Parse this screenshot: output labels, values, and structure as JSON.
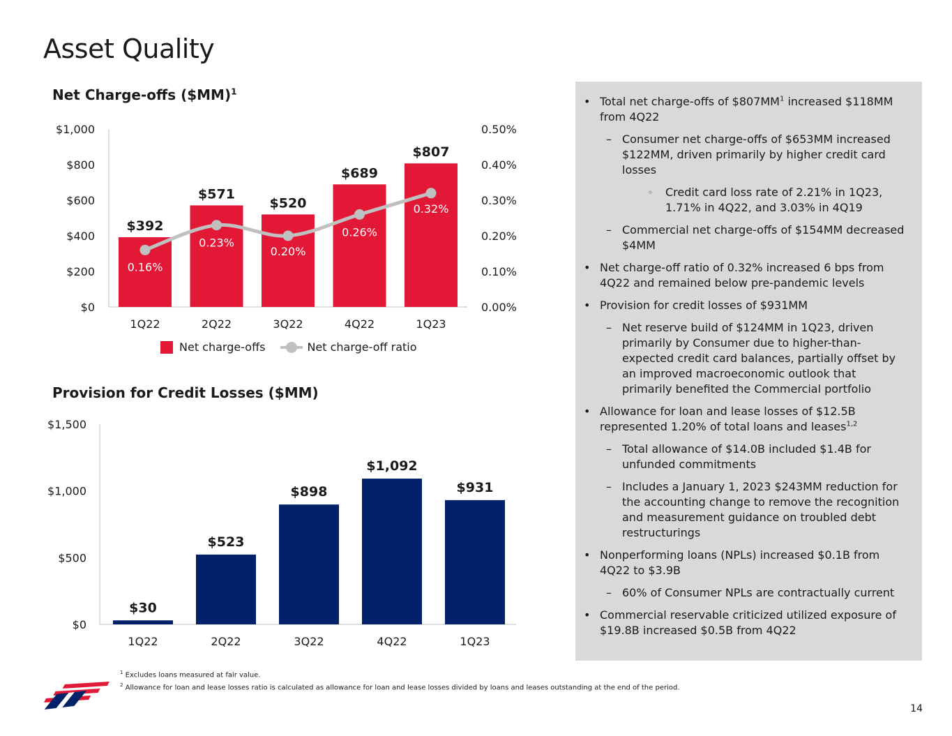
{
  "page": {
    "title": "Asset Quality",
    "page_number": "14"
  },
  "colors": {
    "red": "#e31837",
    "navy": "#012169",
    "gray_line": "#c0c0c0",
    "panel_bg": "#d9d9d9"
  },
  "chart_data": [
    {
      "type": "bar",
      "title": "Net Charge-offs ($MM)",
      "title_sup": "1",
      "categories": [
        "1Q22",
        "2Q22",
        "3Q22",
        "4Q22",
        "1Q23"
      ],
      "series": [
        {
          "name": "Net charge-offs",
          "type": "bar",
          "axis": "left",
          "values": [
            392,
            571,
            520,
            689,
            807
          ],
          "labels": [
            "$392",
            "$571",
            "$520",
            "$689",
            "$807"
          ],
          "color": "#e31837"
        },
        {
          "name": "Net charge-off ratio",
          "type": "line",
          "axis": "right",
          "values": [
            0.16,
            0.23,
            0.2,
            0.26,
            0.32
          ],
          "labels": [
            "0.16%",
            "0.23%",
            "0.20%",
            "0.26%",
            "0.32%"
          ],
          "color": "#c0c0c0"
        }
      ],
      "ylim": [
        0,
        1000
      ],
      "yticks": [
        "$0",
        "$200",
        "$400",
        "$600",
        "$800",
        "$1,000"
      ],
      "y2lim": [
        0,
        0.5
      ],
      "y2ticks": [
        "0.00%",
        "0.10%",
        "0.20%",
        "0.30%",
        "0.40%",
        "0.50%"
      ],
      "legend_position": "bottom"
    },
    {
      "type": "bar",
      "title": "Provision for Credit Losses ($MM)",
      "categories": [
        "1Q22",
        "2Q22",
        "3Q22",
        "4Q22",
        "1Q23"
      ],
      "values": [
        30,
        523,
        898,
        1092,
        931
      ],
      "labels": [
        "$30",
        "$523",
        "$898",
        "$1,092",
        "$931"
      ],
      "color": "#012169",
      "ylim": [
        0,
        1500
      ],
      "yticks": [
        "$0",
        "$500",
        "$1,000",
        "$1,500"
      ]
    }
  ],
  "bullets": [
    {
      "level": 1,
      "text": "Total net charge-offs of $807MM",
      "sup": "1",
      "after": " increased $118MM from 4Q22"
    },
    {
      "level": 2,
      "text": "Consumer net charge-offs of $653MM increased $122MM, driven primarily by higher credit card losses"
    },
    {
      "level": 3,
      "text": "Credit card loss rate of 2.21% in 1Q23, 1.71% in 4Q22, and 3.03% in 4Q19"
    },
    {
      "level": 2,
      "text": "Commercial net charge-offs of $154MM decreased $4MM"
    },
    {
      "level": 1,
      "text": "Net charge-off ratio of 0.32% increased 6 bps from 4Q22 and remained below pre-pandemic levels"
    },
    {
      "level": 1,
      "text": "Provision for credit losses of $931MM"
    },
    {
      "level": 2,
      "text": "Net reserve build of $124MM in 1Q23, driven primarily by Consumer due to higher-than-expected credit card balances, partially offset by an improved macroeconomic outlook that primarily benefited the Commercial portfolio"
    },
    {
      "level": 1,
      "text": "Allowance for loan and lease losses of $12.5B represented 1.20% of total loans and leases",
      "sup": "1,2"
    },
    {
      "level": 2,
      "text": "Total allowance of $14.0B included $1.4B for unfunded commitments"
    },
    {
      "level": 2,
      "text": "Includes a January 1, 2023 $243MM reduction for the accounting change to remove the recognition and measurement guidance on troubled debt restructurings"
    },
    {
      "level": 1,
      "text": "Nonperforming loans (NPLs) increased $0.1B from 4Q22 to $3.9B"
    },
    {
      "level": 2,
      "text": "60% of Consumer NPLs are contractually current"
    },
    {
      "level": 1,
      "text": "Commercial reservable criticized utilized exposure of $19.8B increased $0.5B from 4Q22"
    }
  ],
  "bullet_markers": {
    "1": "•",
    "2": "–",
    "3": "◦"
  },
  "footnotes": [
    {
      "num": "1",
      "text": "Excludes loans measured at fair value."
    },
    {
      "num": "2",
      "text": "Allowance for loan and lease losses ratio is calculated as allowance for loan and lease losses divided by loans and leases outstanding at the end of the period."
    }
  ],
  "logo": {
    "icon": "bank-flag-logo-icon"
  }
}
